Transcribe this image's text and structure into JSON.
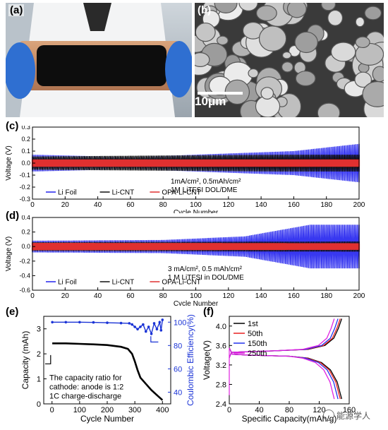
{
  "panels": {
    "a": {
      "label": "(a)"
    },
    "b": {
      "label": "(b)",
      "scale_bar": "10μm"
    },
    "c": {
      "label": "(c)"
    },
    "d": {
      "label": "(d)"
    },
    "e": {
      "label": "(e)"
    },
    "f": {
      "label": "(f)"
    }
  },
  "watermark": "能源学人",
  "chart_data": [
    {
      "id": "c",
      "type": "line",
      "xlabel": "Cycle Number",
      "ylabel": "Voltage (V)",
      "xlim": [
        0,
        200
      ],
      "ylim": [
        -0.3,
        0.3
      ],
      "xticks": [
        0,
        20,
        40,
        60,
        80,
        100,
        120,
        140,
        160,
        180,
        200
      ],
      "yticks": [
        -0.3,
        -0.2,
        -0.1,
        0.0,
        0.1,
        0.2,
        0.3
      ],
      "annotation": [
        "1mA/cm², 0.5mAh/cm²",
        "1M LiTFSI DOL/DME"
      ],
      "series": [
        {
          "name": "Li Foil",
          "color": "#2222ee",
          "amplitude": [
            [
              0,
              0.07
            ],
            [
              60,
              0.05
            ],
            [
              100,
              0.07
            ],
            [
              160,
              0.1
            ],
            [
              200,
              0.16
            ]
          ]
        },
        {
          "name": "Li-CNT",
          "color": "#111111",
          "amplitude": [
            [
              0,
              0.055
            ],
            [
              100,
              0.065
            ],
            [
              150,
              0.07
            ],
            [
              200,
              0.07
            ]
          ]
        },
        {
          "name": "OPA-Li-CNT",
          "color": "#e03030",
          "amplitude": [
            [
              0,
              0.03
            ],
            [
              200,
              0.03
            ]
          ]
        }
      ]
    },
    {
      "id": "d",
      "type": "line",
      "xlabel": "Cycle Number",
      "ylabel": "Voltage (V)",
      "xlim": [
        0,
        200
      ],
      "ylim": [
        -0.6,
        0.4
      ],
      "xticks": [
        0,
        20,
        40,
        60,
        80,
        100,
        120,
        140,
        160,
        180,
        200
      ],
      "yticks": [
        -0.6,
        -0.4,
        -0.2,
        0.0,
        0.2,
        0.4
      ],
      "annotation": [
        "3 mA/cm², 0.5 mAh/cm²",
        "1 M LiTFSI in DOL/DME"
      ],
      "series": [
        {
          "name": "Li Foil",
          "color": "#2222ee",
          "amplitude": [
            [
              0,
              0.08
            ],
            [
              80,
              0.09
            ],
            [
              130,
              0.14
            ],
            [
              170,
              0.3
            ],
            [
              200,
              0.3
            ]
          ]
        },
        {
          "name": "Li-CNT",
          "color": "#111111",
          "amplitude": [
            [
              0,
              0.06
            ],
            [
              200,
              0.07
            ]
          ]
        },
        {
          "name": "OPA-Li-CNT",
          "color": "#e03030",
          "amplitude": [
            [
              0,
              0.05
            ],
            [
              200,
              0.045
            ]
          ]
        }
      ]
    },
    {
      "id": "e",
      "type": "scatter",
      "xlabel": "Cycle Number",
      "ylabel": "Capacity (mAh)",
      "ylabel_right": "Coulombic Efficiency(%)",
      "xlim": [
        -30,
        430
      ],
      "ylim": [
        0,
        3.5
      ],
      "ylim_right": [
        30,
        105
      ],
      "xticks": [
        0,
        100,
        200,
        300,
        400
      ],
      "yticks": [
        0,
        1,
        2,
        3
      ],
      "yticks_right": [
        40,
        60,
        80,
        100
      ],
      "annotation": [
        "The capacity ratio for",
        "cathode: anode is 1:2",
        "1C charge-discharge"
      ],
      "series": [
        {
          "name": "Capacity",
          "color": "#000000",
          "axis": "left",
          "x": [
            1,
            50,
            100,
            150,
            200,
            250,
            275,
            290,
            300,
            310,
            320,
            340,
            360,
            380,
            400
          ],
          "y": [
            2.42,
            2.42,
            2.4,
            2.38,
            2.35,
            2.28,
            2.2,
            2.0,
            1.7,
            1.35,
            1.05,
            0.8,
            0.55,
            0.35,
            0.15
          ]
        },
        {
          "name": "Coulombic Efficiency",
          "color": "#1a33d6",
          "axis": "right",
          "x": [
            1,
            50,
            100,
            150,
            200,
            250,
            280,
            290,
            300,
            310,
            320,
            330,
            340,
            350,
            360,
            370,
            380,
            390,
            395,
            400
          ],
          "y": [
            100,
            100,
            100,
            99.8,
            99.5,
            99.2,
            99,
            98,
            96,
            94,
            96,
            98,
            92,
            96,
            90,
            99,
            94,
            100,
            93,
            102
          ]
        }
      ]
    },
    {
      "id": "f",
      "type": "line",
      "xlabel": "Specific Capacity(mAh/g)",
      "ylabel": "Voltage(V)",
      "xlim": [
        0,
        160
      ],
      "ylim": [
        2.4,
        4.2
      ],
      "xticks": [
        0,
        40,
        80,
        120,
        160
      ],
      "yticks": [
        2.4,
        2.8,
        3.2,
        3.6,
        4.0
      ],
      "series": [
        {
          "name": "1st",
          "color": "#000000",
          "cap": 150
        },
        {
          "name": "50th",
          "color": "#e82020",
          "cap": 148
        },
        {
          "name": "150th",
          "color": "#2233ee",
          "cap": 145
        },
        {
          "name": "250th",
          "color": "#e020e0",
          "cap": 140
        }
      ]
    }
  ]
}
